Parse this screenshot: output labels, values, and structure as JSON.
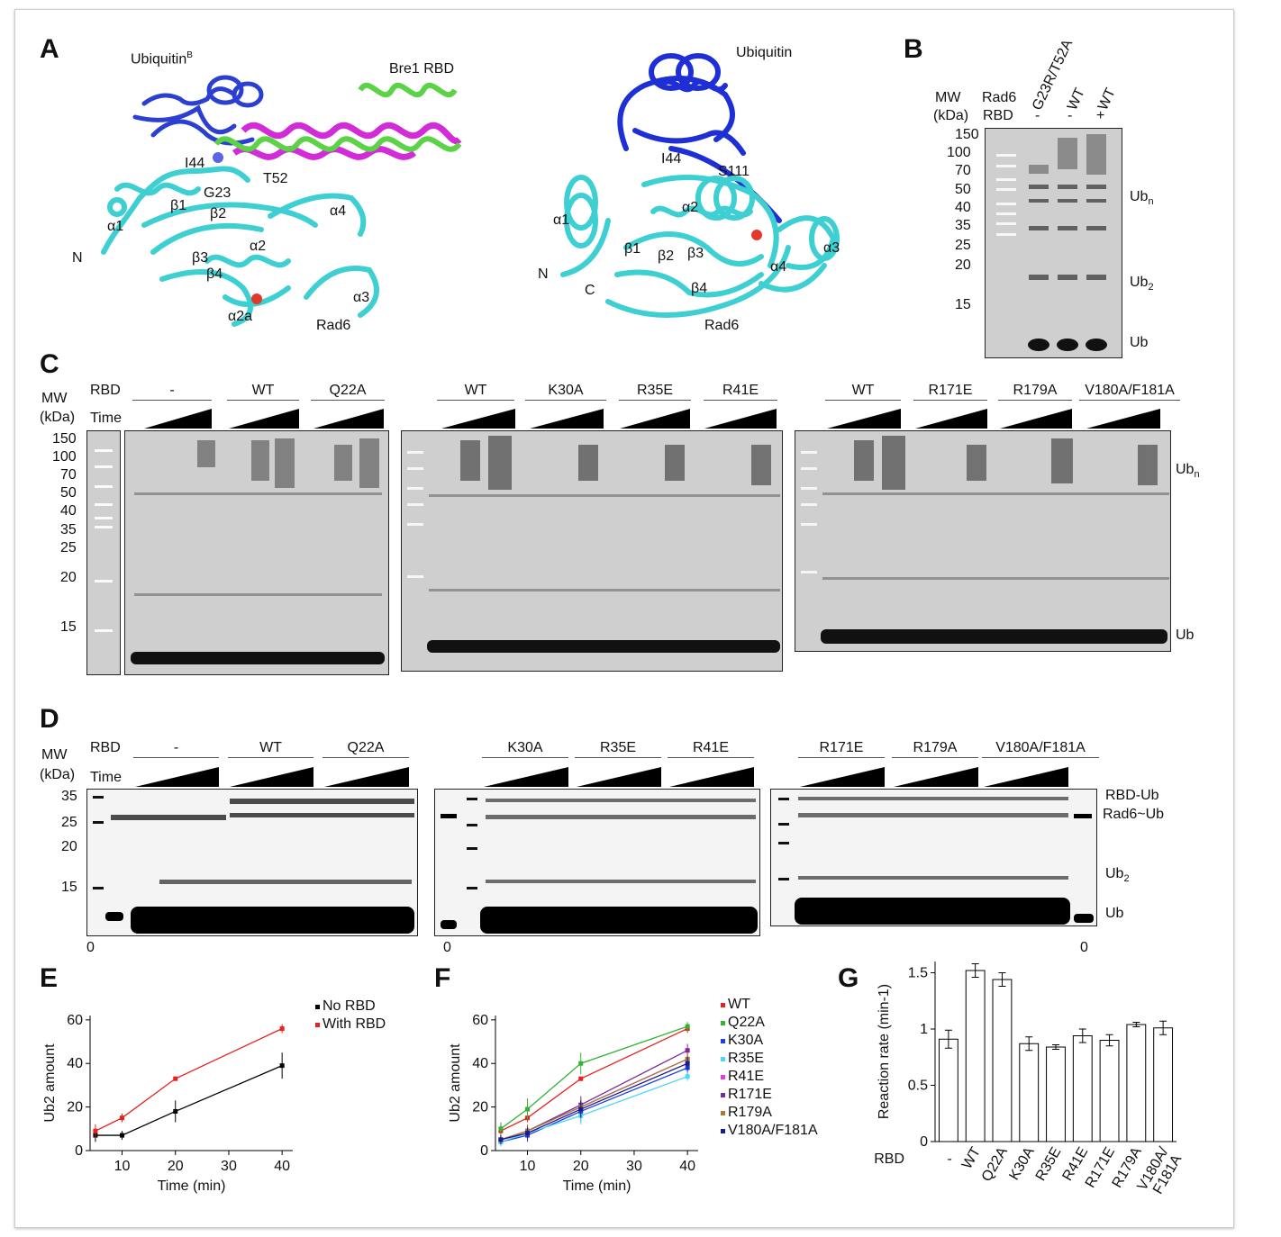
{
  "panels": {
    "A": "A",
    "B": "B",
    "C": "C",
    "D": "D",
    "E": "E",
    "F": "F",
    "G": "G"
  },
  "panelA": {
    "left": {
      "ubiquitin": "Ubiquitin",
      "ub_sup": "B",
      "bre1": "Bre1 RBD",
      "I44": "I44",
      "T52": "T52",
      "G23": "G23",
      "a1": "α1",
      "b1": "β1",
      "b2": "β2",
      "a4": "α4",
      "N": "N",
      "b3": "β3",
      "a2": "α2",
      "b4": "β4",
      "a3": "α3",
      "a2a": "α2a",
      "rad6": "Rad6"
    },
    "right": {
      "ubiquitin": "Ubiquitin",
      "I44": "I44",
      "S111": "S111",
      "a1": "α1",
      "a2": "α2",
      "N": "N",
      "b1": "β1",
      "b2": "β2",
      "b3": "β3",
      "C": "C",
      "b4": "β4",
      "a4": "α4",
      "a3": "α3",
      "rad6": "Rad6"
    }
  },
  "panelB": {
    "mw": "MW",
    "kda": "(kDa)",
    "rad6": "Rad6",
    "rbd": "RBD",
    "lanes": [
      {
        "rad6": "G23R/T52A",
        "rbd": "-"
      },
      {
        "rad6": "WT",
        "rbd": "-"
      },
      {
        "rad6": "WT",
        "rbd": "+"
      }
    ],
    "markers": [
      "150",
      "100",
      "70",
      "50",
      "40",
      "35",
      "25",
      "20",
      "15"
    ],
    "bands": {
      "ubn": "Ub",
      "ubn_sub": "n",
      "ub2": "Ub",
      "ub2_sub": "2",
      "ub": "Ub"
    }
  },
  "panelC": {
    "mw": "MW",
    "kda": "(kDa)",
    "rbd": "RBD",
    "time": "Time",
    "markers": [
      "150",
      "100",
      "70",
      "50",
      "40",
      "35",
      "25",
      "20",
      "15"
    ],
    "groups1": [
      "-",
      "WT",
      "Q22A"
    ],
    "groups2": [
      "WT",
      "K30A",
      "R35E",
      "R41E"
    ],
    "groups3": [
      "WT",
      "R171E",
      "R179A",
      "V180A/F181A"
    ],
    "ubn": "Ub",
    "ubn_sub": "n",
    "ub": "Ub"
  },
  "panelD": {
    "mw": "MW",
    "kda": "(kDa)",
    "rbd": "RBD",
    "time": "Time",
    "markers": [
      "35",
      "25",
      "20",
      "15"
    ],
    "groups1": [
      "-",
      "WT",
      "Q22A"
    ],
    "groups2": [
      "K30A",
      "R35E",
      "R41E"
    ],
    "groups3": [
      "R171E",
      "R179A",
      "V180A/F181A"
    ],
    "zero": "0",
    "right_labels": {
      "rbd_ub": "RBD-Ub",
      "rad6_ub": "Rad6~Ub",
      "ub2": "Ub",
      "ub2_sub": "2",
      "ub": "Ub"
    }
  },
  "chart_data": [
    {
      "panel": "E",
      "type": "line",
      "xlabel": "Time (min)",
      "ylabel": "Ub2 amount",
      "xlim": [
        4,
        42
      ],
      "ylim": [
        0,
        62
      ],
      "xticks": [
        10,
        20,
        30,
        40
      ],
      "yticks": [
        0,
        20,
        40,
        60
      ],
      "legend_position": "top-right",
      "x": [
        5,
        10,
        20,
        40
      ],
      "series": [
        {
          "name": "No RBD",
          "color": "#000000",
          "values": [
            7,
            7,
            18,
            39
          ],
          "errors": [
            3,
            2,
            5,
            6
          ]
        },
        {
          "name": "With RBD",
          "color": "#e8201e",
          "values": [
            9,
            15,
            33,
            56
          ],
          "errors": [
            3,
            2,
            1,
            2
          ]
        }
      ]
    },
    {
      "panel": "F",
      "type": "line",
      "xlabel": "Time (min)",
      "ylabel": "Ub2 amount",
      "xlim": [
        4,
        42
      ],
      "ylim": [
        0,
        62
      ],
      "xticks": [
        10,
        20,
        30,
        40
      ],
      "yticks": [
        0,
        20,
        40,
        60
      ],
      "legend_position": "right",
      "x": [
        5,
        10,
        20,
        40
      ],
      "series": [
        {
          "name": "WT",
          "color": "#e8201e",
          "values": [
            9,
            15,
            33,
            56
          ],
          "errors": [
            3,
            2,
            1,
            2
          ]
        },
        {
          "name": "Q22A",
          "color": "#33b233",
          "values": [
            10,
            19,
            40,
            57
          ],
          "errors": [
            3,
            5,
            5,
            2
          ]
        },
        {
          "name": "K30A",
          "color": "#1e3de8",
          "values": [
            4,
            7,
            18,
            38
          ],
          "errors": [
            2,
            3,
            5,
            3
          ]
        },
        {
          "name": "R35E",
          "color": "#4fd8f2",
          "values": [
            4,
            8,
            16,
            34
          ],
          "errors": [
            2,
            3,
            4,
            2
          ]
        },
        {
          "name": "R41E",
          "color": "#e040e0",
          "values": [
            5,
            9,
            20,
            42
          ],
          "errors": [
            2,
            3,
            4,
            3
          ]
        },
        {
          "name": "R171E",
          "color": "#7a2a9a",
          "values": [
            5,
            9,
            21,
            46
          ],
          "errors": [
            2,
            3,
            4,
            3
          ]
        },
        {
          "name": "R179A",
          "color": "#a87a3a",
          "values": [
            5,
            9,
            20,
            42
          ],
          "errors": [
            2,
            3,
            4,
            3
          ]
        },
        {
          "name": "V180A/F181A",
          "color": "#1a1a8a",
          "values": [
            5,
            8,
            19,
            40
          ],
          "errors": [
            2,
            3,
            4,
            3
          ]
        }
      ]
    },
    {
      "panel": "G",
      "type": "bar",
      "ylabel": "Reaction rate (min-1)",
      "xlabel": "RBD",
      "ylim": [
        0,
        1.6
      ],
      "yticks": [
        "0",
        "0.5",
        "1",
        "1.5"
      ],
      "categories": [
        "-",
        "WT",
        "Q22A",
        "K30A",
        "R35E",
        "R41E",
        "R171E",
        "R179A",
        "V180A/\nF181A"
      ],
      "values": [
        0.91,
        1.52,
        1.44,
        0.87,
        0.84,
        0.94,
        0.9,
        1.04,
        1.01
      ],
      "errors": [
        0.08,
        0.06,
        0.06,
        0.06,
        0.02,
        0.06,
        0.05,
        0.02,
        0.06
      ]
    }
  ]
}
